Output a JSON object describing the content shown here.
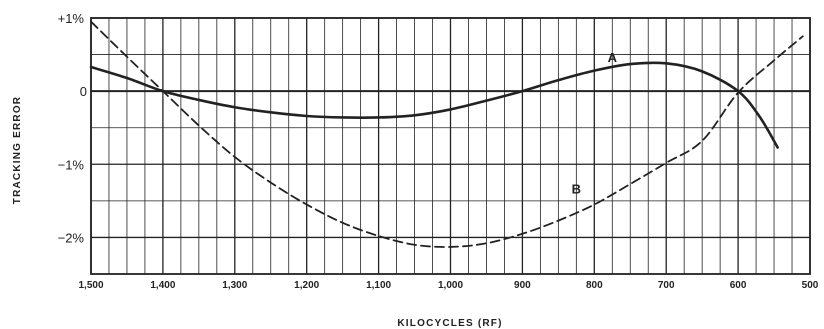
{
  "chart_data": {
    "type": "line",
    "xlabel": "KILOCYCLES (RF)",
    "ylabel": "TRACKING ERROR",
    "x_ticks": [
      1500,
      1400,
      1300,
      1200,
      1100,
      1000,
      900,
      800,
      700,
      600,
      500
    ],
    "x_tick_labels": [
      "1,500",
      "1,400",
      "1,300",
      "1,200",
      "1,100",
      "1,000",
      "900",
      "800",
      "700",
      "600",
      "500"
    ],
    "x_reversed": true,
    "xlim": [
      1500,
      500
    ],
    "y_ticks": [
      1,
      0,
      -1,
      -2
    ],
    "y_tick_labels": [
      "+1%",
      "0",
      "−1%",
      "−2%"
    ],
    "ylim": [
      -2.5,
      1
    ],
    "grid": true,
    "series": [
      {
        "name": "A",
        "style": "solid",
        "x": [
          1500,
          1450,
          1400,
          1350,
          1300,
          1250,
          1200,
          1150,
          1100,
          1050,
          1000,
          950,
          900,
          850,
          800,
          750,
          700,
          650,
          600,
          570,
          545
        ],
        "y": [
          0.33,
          0.18,
          0.0,
          -0.12,
          -0.22,
          -0.29,
          -0.34,
          -0.36,
          -0.36,
          -0.33,
          -0.25,
          -0.13,
          0.0,
          0.15,
          0.28,
          0.37,
          0.38,
          0.27,
          0.0,
          -0.35,
          -0.77
        ]
      },
      {
        "name": "B",
        "style": "dashed",
        "x": [
          1500,
          1450,
          1400,
          1350,
          1300,
          1250,
          1200,
          1150,
          1100,
          1050,
          1000,
          950,
          900,
          850,
          800,
          750,
          700,
          650,
          600,
          550,
          510
        ],
        "y": [
          0.95,
          0.47,
          0.0,
          -0.47,
          -0.9,
          -1.25,
          -1.55,
          -1.8,
          -1.98,
          -2.1,
          -2.13,
          -2.08,
          -1.95,
          -1.77,
          -1.55,
          -1.27,
          -0.98,
          -0.68,
          -0.02,
          0.42,
          0.75
        ]
      }
    ],
    "annotations": [
      {
        "text": "A",
        "series": "A",
        "x": 775,
        "y": 0.4
      },
      {
        "text": "B",
        "series": "B",
        "x": 825,
        "y": -1.4
      }
    ]
  },
  "colors": {
    "background": "#ffffff",
    "grid": "#222222",
    "curve": "#222222"
  }
}
